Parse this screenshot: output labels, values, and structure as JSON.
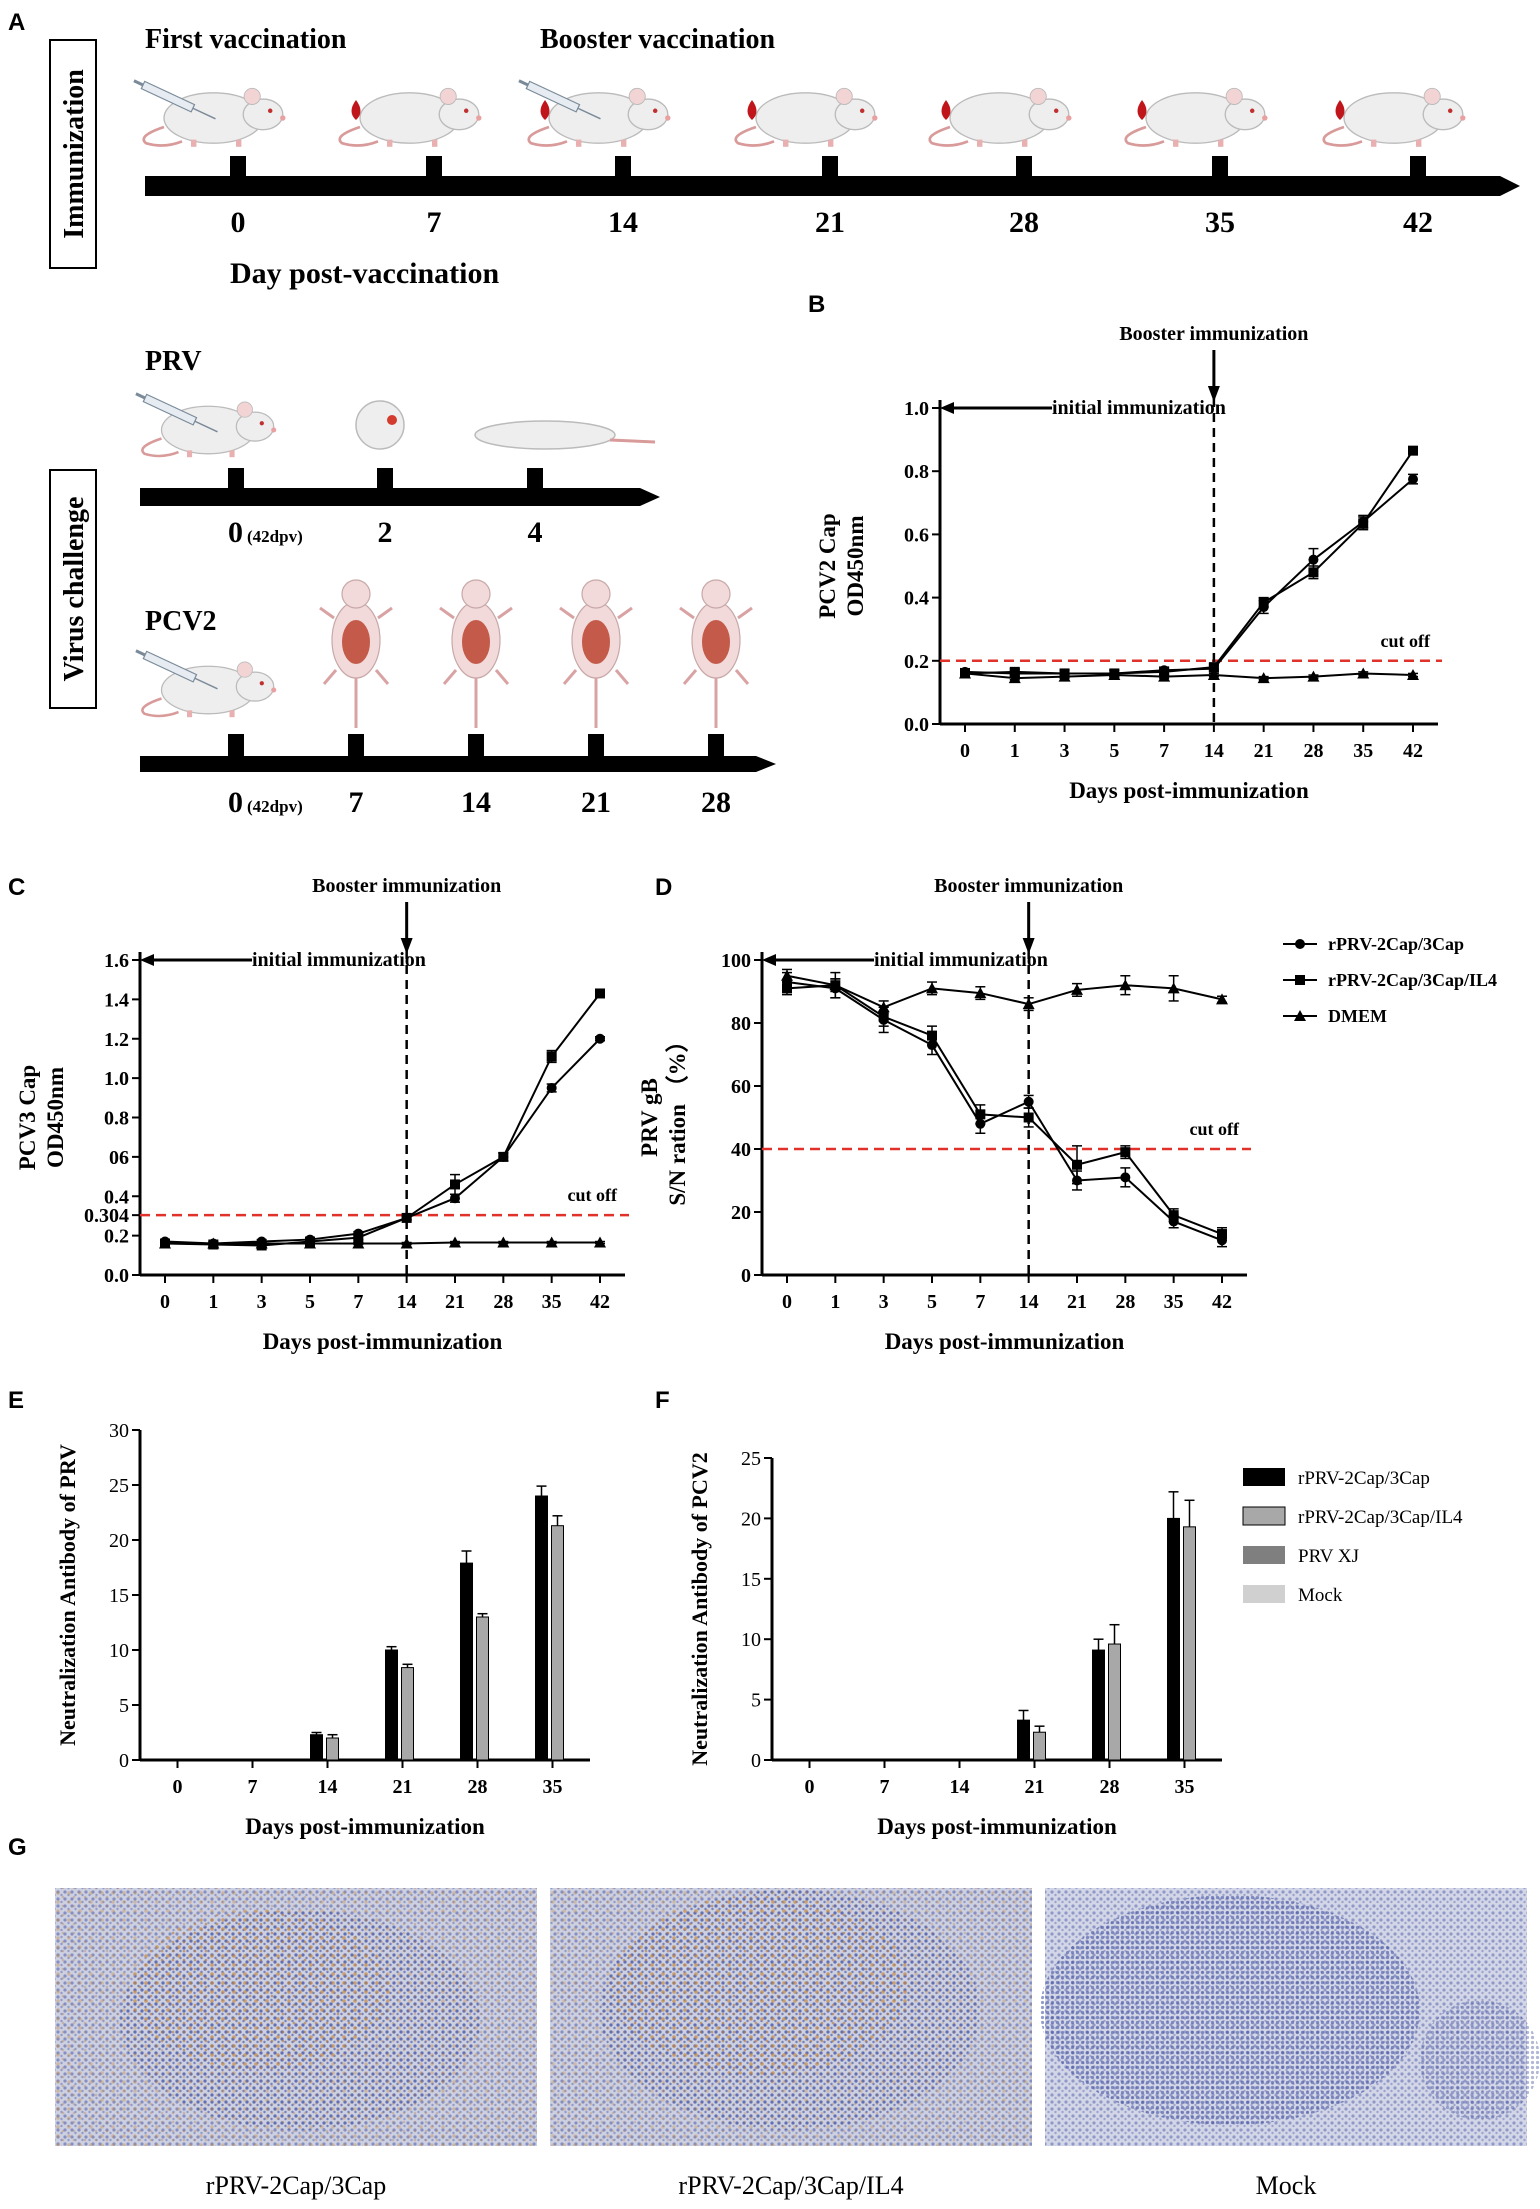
{
  "panel_labels": {
    "a": "A",
    "b": "B",
    "c": "C",
    "d": "D",
    "e": "E",
    "f": "F",
    "g": "G"
  },
  "immunization": {
    "side_label": "Immunization",
    "first_label": "First vaccination",
    "booster_label": "Booster vaccination",
    "days": [
      "0",
      "7",
      "14",
      "21",
      "28",
      "35",
      "42"
    ],
    "axis_title": "Day post-vaccination"
  },
  "challenge": {
    "side_label": "Virus challenge",
    "prv": {
      "title": "PRV",
      "day0": "0",
      "day0_sub": "(42dpv)",
      "days": [
        "2",
        "4"
      ]
    },
    "pcv2": {
      "title": "PCV2",
      "day0": "0",
      "day0_sub": "(42dpv)",
      "days": [
        "7",
        "14",
        "21",
        "28"
      ]
    }
  },
  "colors": {
    "cutoff": "#e0322a",
    "black": "#000000",
    "gray": "#a8a8a8",
    "darkgray": "#7f7f7f",
    "lightgray": "#d0d0d0",
    "tissue_bg": "#c5c8dc",
    "nuclei": "#4a5aa8",
    "dab": "#c8883c"
  },
  "legend_lines": [
    "rPRV-2Cap/3Cap",
    "rPRV-2Cap/3Cap/IL4",
    "DMEM"
  ],
  "legend_bars": [
    "rPRV-2Cap/3Cap",
    "rPRV-2Cap/3Cap/IL4",
    "PRV XJ",
    "Mock"
  ],
  "chart_data": [
    {
      "id": "B",
      "type": "line",
      "ylabel": [
        "PCV2 Cap",
        "OD450nm"
      ],
      "xlabel": "Days post-immunization",
      "categories": [
        "0",
        "1",
        "3",
        "5",
        "7",
        "14",
        "21",
        "28",
        "35",
        "42"
      ],
      "ylim": [
        0,
        1.0
      ],
      "yticks": [
        "0.0",
        "0.2",
        "0.4",
        "0.6",
        "0.8",
        "1.0"
      ],
      "cutoff": 0.2,
      "cutoff_label": "cut off",
      "booster_label": "Booster immunization",
      "initial_label": "initial immunization",
      "series": [
        {
          "name": "rPRV-2Cap/3Cap",
          "marker": "circle",
          "values": [
            0.165,
            0.16,
            0.16,
            0.16,
            0.17,
            0.175,
            0.37,
            0.52,
            0.64,
            0.775
          ],
          "errors": [
            0.01,
            0.01,
            0.01,
            0.01,
            0.01,
            0.01,
            0.02,
            0.035,
            0.02,
            0.015
          ]
        },
        {
          "name": "rPRV-2Cap/3Cap/IL4",
          "marker": "square",
          "values": [
            0.16,
            0.165,
            0.16,
            0.16,
            0.165,
            0.18,
            0.385,
            0.48,
            0.635,
            0.865
          ],
          "errors": [
            0.01,
            0.01,
            0.01,
            0.01,
            0.01,
            0.01,
            0.015,
            0.02,
            0.02,
            0.005
          ]
        },
        {
          "name": "DMEM",
          "marker": "triangle",
          "values": [
            0.16,
            0.145,
            0.15,
            0.155,
            0.15,
            0.155,
            0.145,
            0.15,
            0.16,
            0.155
          ],
          "errors": [
            0.005,
            0.005,
            0.005,
            0.005,
            0.005,
            0.005,
            0.005,
            0.005,
            0.005,
            0.005
          ]
        }
      ]
    },
    {
      "id": "C",
      "type": "line",
      "ylabel": [
        "PCV3 Cap",
        "OD450nm"
      ],
      "xlabel": "Days post-immunization",
      "categories": [
        "0",
        "1",
        "3",
        "5",
        "7",
        "14",
        "21",
        "28",
        "35",
        "42"
      ],
      "ylim": [
        0,
        1.6
      ],
      "ytick_values": [
        0,
        0.2,
        0.304,
        0.4,
        0.6,
        0.8,
        1.0,
        1.2,
        1.4,
        1.6
      ],
      "yticks": [
        "0.0",
        "0.2",
        "0.304",
        "0.4",
        "06",
        "0.8",
        "1.0",
        "1.2",
        "1.4",
        "1.6"
      ],
      "cutoff": 0.304,
      "cutoff_label": "cut off",
      "booster_label": "Booster immunization",
      "initial_label": "initial immunization",
      "series": [
        {
          "name": "rPRV-2Cap/3Cap",
          "marker": "circle",
          "values": [
            0.17,
            0.16,
            0.17,
            0.18,
            0.21,
            0.29,
            0.39,
            0.6,
            0.95,
            1.2
          ],
          "errors": [
            0.01,
            0.01,
            0.01,
            0.01,
            0.01,
            0.01,
            0.02,
            0.02,
            0.02,
            0.01
          ]
        },
        {
          "name": "rPRV-2Cap/3Cap/IL4",
          "marker": "square",
          "values": [
            0.16,
            0.155,
            0.15,
            0.17,
            0.19,
            0.29,
            0.46,
            0.6,
            1.11,
            1.43
          ],
          "errors": [
            0.01,
            0.01,
            0.01,
            0.01,
            0.01,
            0.01,
            0.05,
            0.02,
            0.03,
            0.02
          ]
        },
        {
          "name": "DMEM",
          "marker": "triangle",
          "values": [
            0.16,
            0.16,
            0.16,
            0.16,
            0.16,
            0.16,
            0.165,
            0.165,
            0.165,
            0.165
          ],
          "errors": [
            0.005,
            0.005,
            0.005,
            0.005,
            0.005,
            0.005,
            0.005,
            0.005,
            0.005,
            0.005
          ]
        }
      ]
    },
    {
      "id": "D",
      "type": "line",
      "ylabel": [
        "PRV gB",
        "S/N ration （%）"
      ],
      "xlabel": "Days post-immunization",
      "categories": [
        "0",
        "1",
        "3",
        "5",
        "7",
        "14",
        "21",
        "28",
        "35",
        "42"
      ],
      "ylim": [
        0,
        100
      ],
      "yticks": [
        "0",
        "20",
        "40",
        "60",
        "80",
        "100"
      ],
      "cutoff": 40,
      "cutoff_label": "cut off",
      "booster_label": "Booster immunization",
      "initial_label": "initial immunization",
      "series": [
        {
          "name": "rPRV-2Cap/3Cap",
          "marker": "circle",
          "values": [
            93,
            91,
            81,
            73,
            48,
            55,
            30,
            31,
            17,
            11
          ],
          "errors": [
            3,
            3,
            4,
            3,
            3,
            2,
            3,
            3,
            2,
            2
          ]
        },
        {
          "name": "rPRV-2Cap/3Cap/IL4",
          "marker": "square",
          "values": [
            91,
            92,
            82,
            76,
            51,
            50,
            35,
            39,
            19,
            13
          ],
          "errors": [
            2,
            2,
            3,
            3,
            3,
            3,
            6,
            2,
            2,
            2
          ]
        },
        {
          "name": "DMEM",
          "marker": "triangle",
          "values": [
            95,
            92,
            85,
            91,
            89.5,
            86,
            90.5,
            92,
            91,
            87.5
          ],
          "errors": [
            2,
            4,
            2,
            2,
            2,
            2,
            2,
            3,
            4,
            1
          ]
        }
      ]
    },
    {
      "id": "E",
      "type": "bar",
      "ylabel": "Neutralization Antibody of PRV",
      "xlabel": "Days post-immunization",
      "categories": [
        "0",
        "7",
        "14",
        "21",
        "28",
        "35"
      ],
      "ylim": [
        0,
        30
      ],
      "yticks": [
        "0",
        "5",
        "10",
        "15",
        "20",
        "25",
        "30"
      ],
      "series": [
        {
          "name": "rPRV-2Cap/3Cap",
          "values": [
            0,
            0,
            2.3,
            10,
            17.9,
            24
          ],
          "errors": [
            0,
            0,
            0.2,
            0.3,
            1.1,
            0.9
          ]
        },
        {
          "name": "rPRV-2Cap/3Cap/IL4",
          "values": [
            0,
            0,
            2.0,
            8.4,
            13,
            21.3
          ],
          "errors": [
            0,
            0,
            0.3,
            0.3,
            0.3,
            0.9
          ]
        }
      ]
    },
    {
      "id": "F",
      "type": "bar",
      "ylabel": "Neutralization Antibody of PCV2",
      "xlabel": "Days post-immunization",
      "categories": [
        "0",
        "7",
        "14",
        "21",
        "28",
        "35"
      ],
      "ylim": [
        0,
        25
      ],
      "yticks": [
        "0",
        "5",
        "10",
        "15",
        "20",
        "25"
      ],
      "series": [
        {
          "name": "rPRV-2Cap/3Cap",
          "values": [
            0,
            0,
            0,
            3.3,
            9.1,
            20
          ],
          "errors": [
            0,
            0,
            0,
            0.8,
            0.9,
            2.2
          ]
        },
        {
          "name": "rPRV-2Cap/3Cap/IL4",
          "values": [
            0,
            0,
            0,
            2.3,
            9.6,
            19.3
          ],
          "errors": [
            0,
            0,
            0,
            0.5,
            1.6,
            2.2
          ]
        }
      ]
    }
  ],
  "histology": {
    "labels": [
      "rPRV-2Cap/3Cap",
      "rPRV-2Cap/3Cap/IL4",
      "Mock"
    ]
  }
}
